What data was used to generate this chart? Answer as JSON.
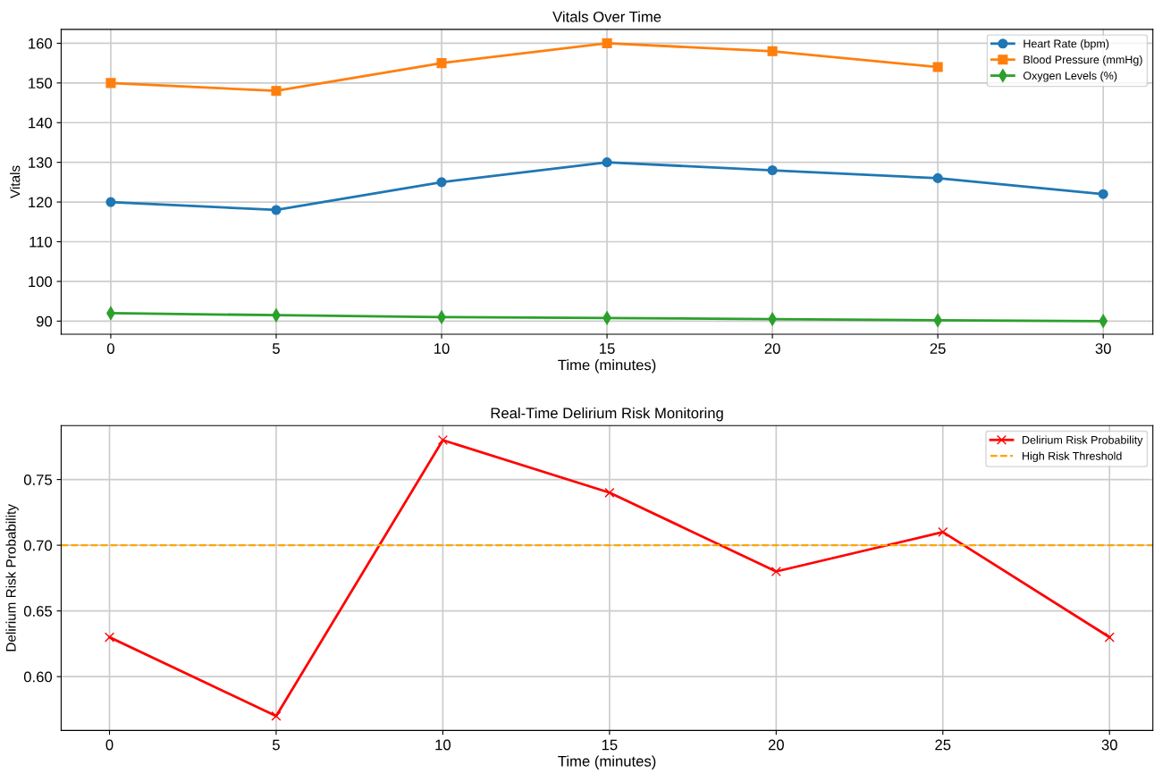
{
  "chart_data": [
    {
      "type": "line",
      "title": "Vitals Over Time",
      "xlabel": "Time (minutes)",
      "ylabel": "Vitals",
      "x": [
        0,
        5,
        10,
        15,
        20,
        25,
        30
      ],
      "series": [
        {
          "name": "Heart Rate (bpm)",
          "color": "#1f77b4",
          "marker": "circle",
          "values": [
            120,
            118,
            125,
            130,
            128,
            126,
            122
          ]
        },
        {
          "name": "Blood Pressure (mmHg)",
          "color": "#ff7f0e",
          "marker": "square",
          "values": [
            150,
            148,
            155,
            160,
            158,
            154,
            null
          ]
        },
        {
          "name": "Oxygen Levels (%)",
          "color": "#2ca02c",
          "marker": "diamond",
          "values": [
            92,
            91.5,
            91,
            90.8,
            90.5,
            90.2,
            90
          ]
        }
      ],
      "xlim": [
        -1.5,
        31.5
      ],
      "xticks": [
        0,
        5,
        10,
        15,
        20,
        25,
        30
      ],
      "ylim": [
        86.7,
        163.5
      ],
      "yticks": [
        90,
        100,
        110,
        120,
        130,
        140,
        150,
        160
      ],
      "grid": true,
      "legend": "top right",
      "line_style": "solid"
    },
    {
      "type": "line",
      "title": "Real-Time Delirium Risk Monitoring",
      "xlabel": "Time (minutes)",
      "ylabel": "Delirium Risk Probability",
      "x": [
        0,
        5,
        10,
        15,
        20,
        25,
        30
      ],
      "series": [
        {
          "name": "Delirium Risk Probability",
          "color": "#ff0000",
          "marker": "cross",
          "values": [
            0.63,
            0.57,
            0.78,
            0.74,
            0.68,
            0.71,
            0.63
          ]
        }
      ],
      "ref_lines": [
        {
          "axis": "y",
          "value": 0.7,
          "label": "High Risk Threshold",
          "color": "#ffa500",
          "line_style": "dashed"
        }
      ],
      "xlim": [
        -1.45,
        31.3
      ],
      "xticks": [
        0,
        5,
        10,
        15,
        20,
        25,
        30
      ],
      "ylim": [
        0.559,
        0.791
      ],
      "yticks": [
        {
          "value": 0.6,
          "label": "0.60"
        },
        0.65,
        {
          "value": 0.7,
          "label": "0.70"
        },
        0.75
      ],
      "grid": true,
      "legend": "top right",
      "line_style": "solid"
    }
  ]
}
